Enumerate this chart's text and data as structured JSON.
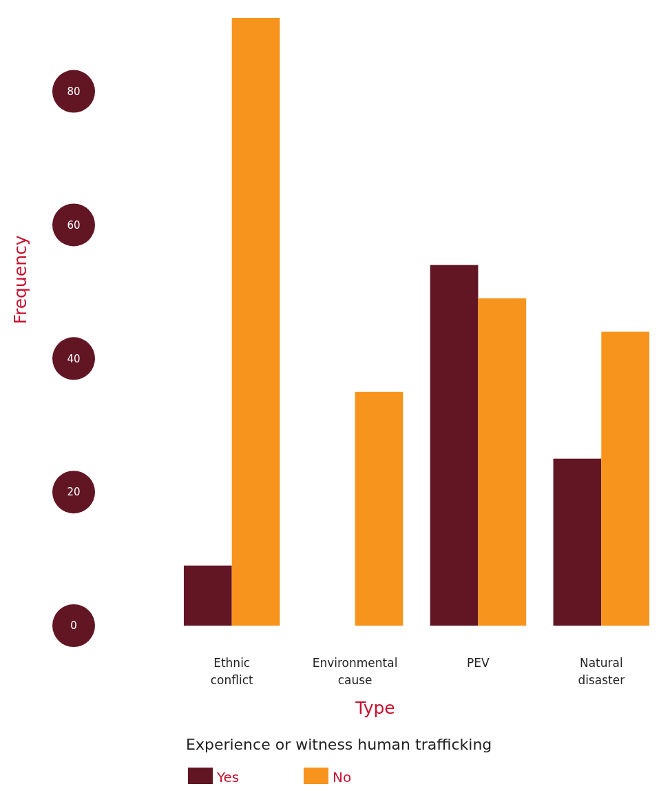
{
  "chart_data": {
    "type": "bar",
    "xlabel": "Type",
    "ylabel": "Frequency",
    "legend_title": "Experience or witness human trafficking",
    "legend": "bottom",
    "categories": [
      "Ethnic conflict",
      "Environmental cause",
      "PEV",
      "Natural disaster"
    ],
    "series": [
      {
        "name": "Yes",
        "color": "#621624",
        "values": [
          9,
          0,
          54,
          25
        ]
      },
      {
        "name": "No",
        "color": "#f7941d",
        "values": [
          91,
          35,
          49,
          44
        ]
      }
    ],
    "ylim": [
      0,
      91
    ],
    "yticks": [
      0,
      20,
      40,
      60,
      80
    ],
    "grid": false
  }
}
